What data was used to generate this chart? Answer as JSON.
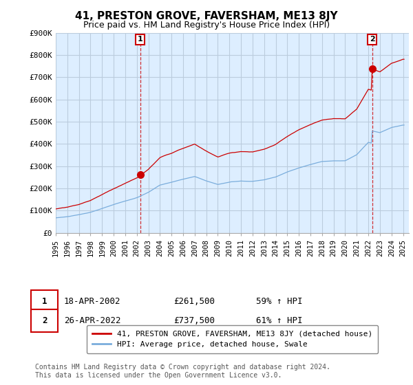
{
  "title": "41, PRESTON GROVE, FAVERSHAM, ME13 8JY",
  "subtitle": "Price paid vs. HM Land Registry's House Price Index (HPI)",
  "ylabel_ticks": [
    "£0",
    "£100K",
    "£200K",
    "£300K",
    "£400K",
    "£500K",
    "£600K",
    "£700K",
    "£800K",
    "£900K"
  ],
  "ylim": [
    0,
    900000
  ],
  "xlim_start": 1995.0,
  "xlim_end": 2025.5,
  "red_line_color": "#cc0000",
  "blue_line_color": "#7aaddc",
  "marker1_x": 2002.3,
  "marker1_y": 261500,
  "marker2_x": 2022.32,
  "marker2_y": 737500,
  "legend_label_red": "41, PRESTON GROVE, FAVERSHAM, ME13 8JY (detached house)",
  "legend_label_blue": "HPI: Average price, detached house, Swale",
  "table_row1": [
    "1",
    "18-APR-2002",
    "£261,500",
    "59% ↑ HPI"
  ],
  "table_row2": [
    "2",
    "26-APR-2022",
    "£737,500",
    "61% ↑ HPI"
  ],
  "footer": "Contains HM Land Registry data © Crown copyright and database right 2024.\nThis data is licensed under the Open Government Licence v3.0.",
  "background_color": "#ffffff",
  "chart_bg_color": "#ddeeff",
  "grid_color": "#bbccdd",
  "xtick_years": [
    1995,
    1996,
    1997,
    1998,
    1999,
    2000,
    2001,
    2002,
    2003,
    2004,
    2005,
    2006,
    2007,
    2008,
    2009,
    2010,
    2011,
    2012,
    2013,
    2014,
    2015,
    2016,
    2017,
    2018,
    2019,
    2020,
    2021,
    2022,
    2023,
    2024,
    2025
  ]
}
